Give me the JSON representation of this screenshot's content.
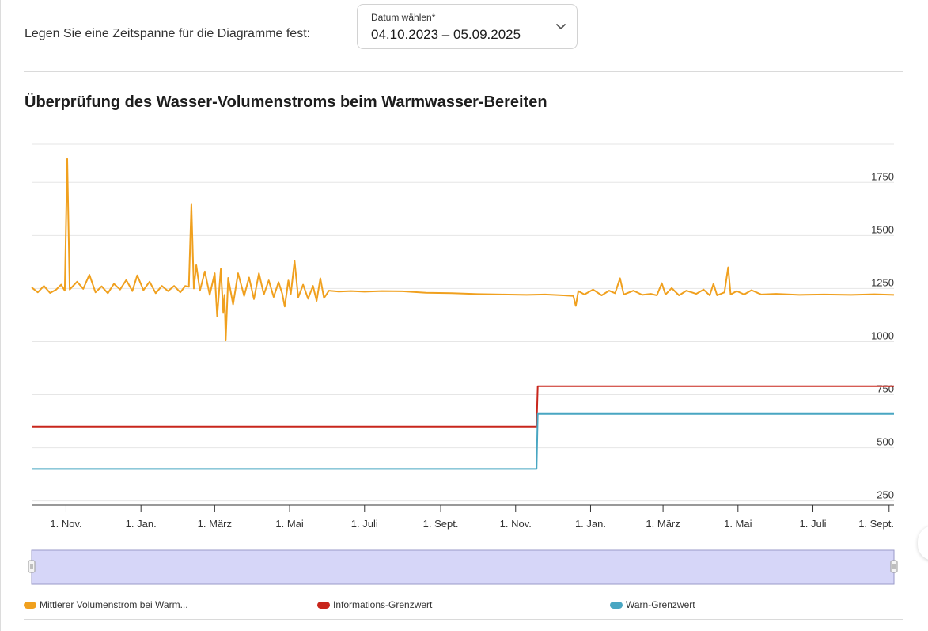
{
  "range_label": "Legen Sie eine Zeitspanne für die Diagramme fest:",
  "date_picker": {
    "label": "Datum wählen*",
    "value": "04.10.2023 – 05.09.2025",
    "icon": "chevron-down-icon"
  },
  "chart_data": {
    "type": "line",
    "title": "Überprüfung des Wasser-Volumenstroms beim Warmwasser-Bereiten",
    "xlabel": "",
    "ylabel": "",
    "x_range": [
      "2023-10-04",
      "2025-09-05"
    ],
    "ylim": [
      230,
      1930
    ],
    "y_ticks": [
      250,
      500,
      750,
      1000,
      1250,
      1500,
      1750
    ],
    "grid": true,
    "legend_position": "bottom",
    "x_ticks": [
      {
        "date": "2023-11-01",
        "label": "1. Nov."
      },
      {
        "date": "2024-01-01",
        "label": "1. Jan."
      },
      {
        "date": "2024-03-01",
        "label": "1. März"
      },
      {
        "date": "2024-05-01",
        "label": "1. Mai"
      },
      {
        "date": "2024-07-01",
        "label": "1. Juli"
      },
      {
        "date": "2024-09-01",
        "label": "1. Sept."
      },
      {
        "date": "2024-11-01",
        "label": "1. Nov."
      },
      {
        "date": "2025-01-01",
        "label": "1. Jan."
      },
      {
        "date": "2025-03-01",
        "label": "1. März"
      },
      {
        "date": "2025-05-01",
        "label": "1. Mai"
      },
      {
        "date": "2025-07-01",
        "label": "1. Juli"
      },
      {
        "date": "2025-09-01",
        "label": "1. Sept."
      }
    ],
    "series": [
      {
        "name": "Mittlerer Volumenstrom bei Warm...",
        "color": "#f0a01e",
        "points": [
          [
            "2023-10-04",
            1255
          ],
          [
            "2023-10-09",
            1232
          ],
          [
            "2023-10-14",
            1262
          ],
          [
            "2023-10-19",
            1229
          ],
          [
            "2023-10-24",
            1245
          ],
          [
            "2023-10-28",
            1268
          ],
          [
            "2023-10-31",
            1240
          ],
          [
            "2023-11-02",
            1860
          ],
          [
            "2023-11-04",
            1245
          ],
          [
            "2023-11-10",
            1282
          ],
          [
            "2023-11-15",
            1248
          ],
          [
            "2023-11-20",
            1315
          ],
          [
            "2023-11-25",
            1232
          ],
          [
            "2023-11-30",
            1260
          ],
          [
            "2023-12-05",
            1228
          ],
          [
            "2023-12-10",
            1272
          ],
          [
            "2023-12-15",
            1245
          ],
          [
            "2023-12-20",
            1290
          ],
          [
            "2023-12-25",
            1238
          ],
          [
            "2023-12-29",
            1312
          ],
          [
            "2024-01-03",
            1242
          ],
          [
            "2024-01-08",
            1282
          ],
          [
            "2024-01-13",
            1228
          ],
          [
            "2024-01-18",
            1262
          ],
          [
            "2024-01-23",
            1238
          ],
          [
            "2024-01-28",
            1262
          ],
          [
            "2024-02-02",
            1232
          ],
          [
            "2024-02-06",
            1262
          ],
          [
            "2024-02-09",
            1258
          ],
          [
            "2024-02-11",
            1645
          ],
          [
            "2024-02-13",
            1250
          ],
          [
            "2024-02-15",
            1360
          ],
          [
            "2024-02-18",
            1240
          ],
          [
            "2024-02-22",
            1330
          ],
          [
            "2024-02-26",
            1220
          ],
          [
            "2024-03-01",
            1322
          ],
          [
            "2024-03-03",
            1118
          ],
          [
            "2024-03-06",
            1342
          ],
          [
            "2024-03-08",
            1138
          ],
          [
            "2024-03-09",
            1220
          ],
          [
            "2024-03-10",
            1005
          ],
          [
            "2024-03-12",
            1300
          ],
          [
            "2024-03-16",
            1175
          ],
          [
            "2024-03-20",
            1322
          ],
          [
            "2024-03-25",
            1215
          ],
          [
            "2024-03-29",
            1302
          ],
          [
            "2024-04-02",
            1200
          ],
          [
            "2024-04-06",
            1322
          ],
          [
            "2024-04-10",
            1222
          ],
          [
            "2024-04-14",
            1288
          ],
          [
            "2024-04-18",
            1210
          ],
          [
            "2024-04-22",
            1280
          ],
          [
            "2024-04-25",
            1225
          ],
          [
            "2024-04-27",
            1165
          ],
          [
            "2024-04-30",
            1288
          ],
          [
            "2024-05-02",
            1225
          ],
          [
            "2024-05-05",
            1380
          ],
          [
            "2024-05-08",
            1208
          ],
          [
            "2024-05-12",
            1268
          ],
          [
            "2024-05-16",
            1202
          ],
          [
            "2024-05-20",
            1262
          ],
          [
            "2024-05-23",
            1192
          ],
          [
            "2024-05-26",
            1298
          ],
          [
            "2024-05-29",
            1205
          ],
          [
            "2024-06-02",
            1240
          ],
          [
            "2024-06-10",
            1236
          ],
          [
            "2024-06-20",
            1238
          ],
          [
            "2024-07-01",
            1235
          ],
          [
            "2024-07-15",
            1238
          ],
          [
            "2024-08-01",
            1237
          ],
          [
            "2024-08-20",
            1230
          ],
          [
            "2024-09-10",
            1228
          ],
          [
            "2024-10-01",
            1224
          ],
          [
            "2024-10-20",
            1222
          ],
          [
            "2024-11-10",
            1220
          ],
          [
            "2024-11-25",
            1222
          ],
          [
            "2024-12-10",
            1218
          ],
          [
            "2024-12-18",
            1215
          ],
          [
            "2024-12-20",
            1168
          ],
          [
            "2024-12-22",
            1238
          ],
          [
            "2024-12-27",
            1222
          ],
          [
            "2025-01-03",
            1245
          ],
          [
            "2025-01-10",
            1218
          ],
          [
            "2025-01-16",
            1240
          ],
          [
            "2025-01-21",
            1228
          ],
          [
            "2025-01-25",
            1298
          ],
          [
            "2025-01-28",
            1222
          ],
          [
            "2025-02-05",
            1240
          ],
          [
            "2025-02-12",
            1220
          ],
          [
            "2025-02-19",
            1225
          ],
          [
            "2025-02-24",
            1218
          ],
          [
            "2025-02-28",
            1275
          ],
          [
            "2025-03-03",
            1222
          ],
          [
            "2025-03-08",
            1252
          ],
          [
            "2025-03-14",
            1218
          ],
          [
            "2025-03-20",
            1240
          ],
          [
            "2025-03-28",
            1225
          ],
          [
            "2025-04-03",
            1245
          ],
          [
            "2025-04-08",
            1218
          ],
          [
            "2025-04-11",
            1272
          ],
          [
            "2025-04-14",
            1218
          ],
          [
            "2025-04-20",
            1232
          ],
          [
            "2025-04-23",
            1350
          ],
          [
            "2025-04-25",
            1222
          ],
          [
            "2025-04-30",
            1238
          ],
          [
            "2025-05-06",
            1222
          ],
          [
            "2025-05-12",
            1242
          ],
          [
            "2025-05-20",
            1222
          ],
          [
            "2025-06-01",
            1225
          ],
          [
            "2025-06-20",
            1220
          ],
          [
            "2025-07-10",
            1222
          ],
          [
            "2025-08-01",
            1220
          ],
          [
            "2025-08-20",
            1223
          ],
          [
            "2025-09-05",
            1220
          ]
        ]
      },
      {
        "name": "Informations-Grenzwert",
        "color": "#c8261c",
        "points": [
          [
            "2023-10-04",
            600
          ],
          [
            "2024-11-18",
            600
          ],
          [
            "2024-11-19",
            790
          ],
          [
            "2025-09-05",
            790
          ]
        ]
      },
      {
        "name": "Warn-Grenzwert",
        "color": "#49a6c2",
        "points": [
          [
            "2023-10-04",
            400
          ],
          [
            "2024-11-18",
            400
          ],
          [
            "2024-11-19",
            660
          ],
          [
            "2025-09-05",
            660
          ]
        ]
      }
    ]
  }
}
